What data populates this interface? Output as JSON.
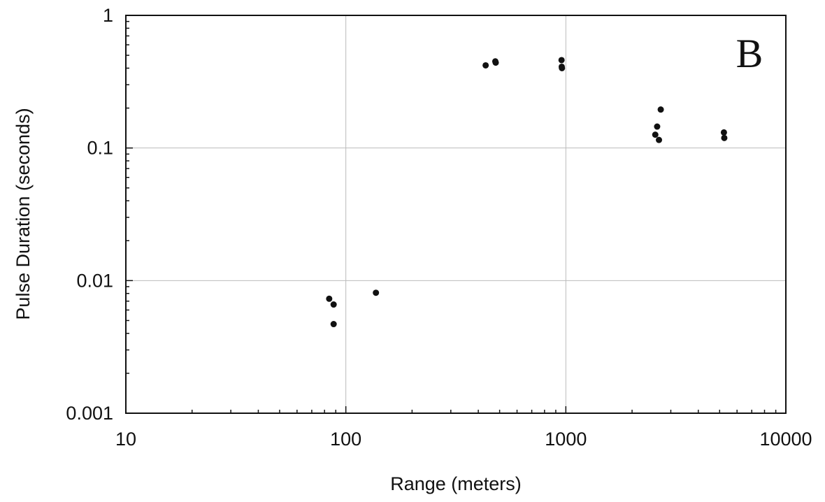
{
  "chart_data": {
    "type": "scatter",
    "title": "",
    "panel_label": "B",
    "xlabel": "Range (meters)",
    "ylabel": "Pulse Duration (seconds)",
    "xscale": "log",
    "yscale": "log",
    "xlim": [
      10,
      10000
    ],
    "ylim": [
      0.001,
      1
    ],
    "x_ticks": [
      10,
      100,
      1000,
      10000
    ],
    "y_ticks": [
      0.001,
      0.01,
      0.1,
      1
    ],
    "x_tick_labels": [
      "10",
      "100",
      "1000",
      "10000"
    ],
    "y_tick_labels": [
      "0.001",
      "0.01",
      "0.1",
      "1"
    ],
    "grid": true,
    "legend": "none",
    "colors": {
      "marker": "#111111",
      "grid": "#bbbbbb",
      "axis": "#111111"
    },
    "series": [
      {
        "points": [
          [
            84,
            0.0073
          ],
          [
            88,
            0.0066
          ],
          [
            88,
            0.0047
          ],
          [
            137,
            0.0081
          ],
          [
            432,
            0.42
          ],
          [
            478,
            0.45
          ],
          [
            480,
            0.44
          ],
          [
            956,
            0.46
          ],
          [
            958,
            0.41
          ],
          [
            960,
            0.4
          ],
          [
            2550,
            0.126
          ],
          [
            2600,
            0.145
          ],
          [
            2650,
            0.115
          ],
          [
            2700,
            0.195
          ],
          [
            5230,
            0.131
          ],
          [
            5250,
            0.119
          ]
        ]
      }
    ]
  }
}
